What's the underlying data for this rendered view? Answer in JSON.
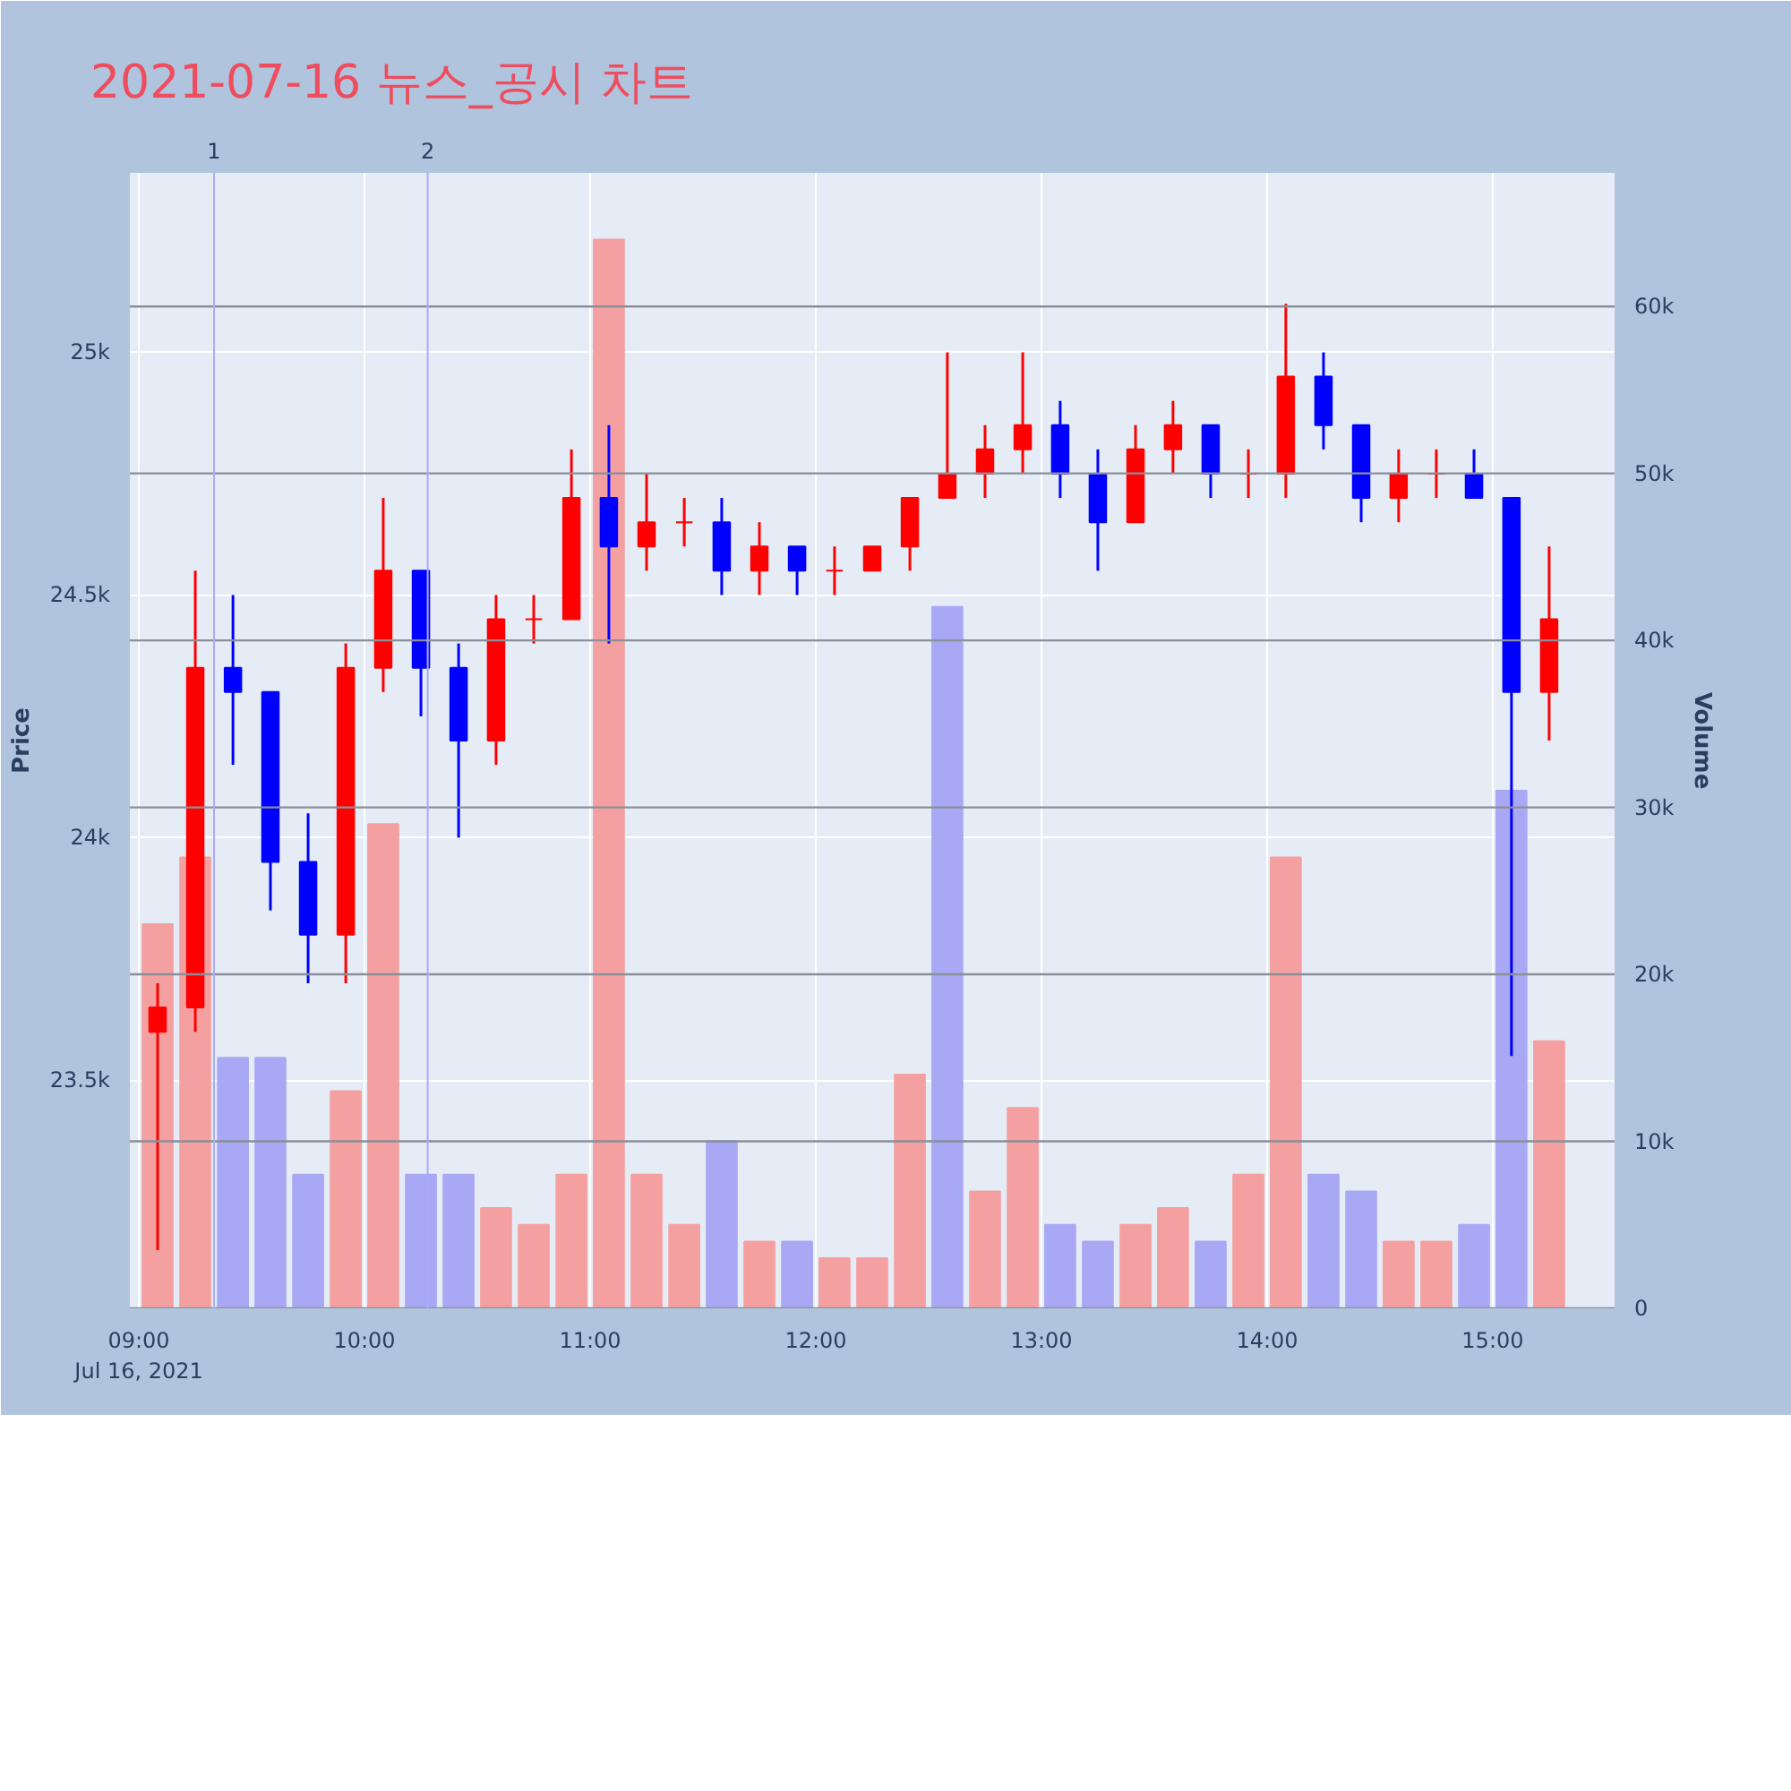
{
  "chart_data": {
    "type": "candlestick",
    "title": "2021-07-16 뉴스_공시 차트",
    "ylabel": "Price",
    "y2label": "Volume",
    "x": [
      9.083,
      9.25,
      9.417,
      9.583,
      9.75,
      9.917,
      10.083,
      10.25,
      10.417,
      10.583,
      10.75,
      10.917,
      11.083,
      11.25,
      11.417,
      11.583,
      11.75,
      11.917,
      12.083,
      12.25,
      12.417,
      12.583,
      12.75,
      12.917,
      13.083,
      13.25,
      13.417,
      13.583,
      13.75,
      13.917,
      14.083,
      14.25,
      14.417,
      14.583,
      14.75,
      14.917,
      15.083,
      15.25
    ],
    "series": [
      {
        "ohlc": [
          [
            23600,
            23700,
            23150,
            23650
          ],
          [
            23650,
            24550,
            23600,
            24350
          ],
          [
            24350,
            24500,
            24150,
            24300
          ],
          [
            24300,
            24300,
            23850,
            23950
          ],
          [
            23950,
            24050,
            23700,
            23800
          ],
          [
            23800,
            24400,
            23700,
            24350
          ],
          [
            24350,
            24700,
            24300,
            24550
          ],
          [
            24550,
            24550,
            24250,
            24350
          ],
          [
            24350,
            24400,
            24000,
            24200
          ],
          [
            24200,
            24500,
            24150,
            24450
          ],
          [
            24450,
            24500,
            24400,
            24450
          ],
          [
            24450,
            24800,
            24450,
            24700
          ],
          [
            24700,
            24850,
            24400,
            24600
          ],
          [
            24600,
            24750,
            24550,
            24650
          ],
          [
            24650,
            24700,
            24600,
            24650
          ],
          [
            24650,
            24700,
            24500,
            24550
          ],
          [
            24550,
            24650,
            24500,
            24600
          ],
          [
            24600,
            24600,
            24500,
            24550
          ],
          [
            24550,
            24600,
            24500,
            24550
          ],
          [
            24550,
            24600,
            24550,
            24600
          ],
          [
            24600,
            24700,
            24550,
            24700
          ],
          [
            24700,
            25000,
            24700,
            24750
          ],
          [
            24750,
            24850,
            24700,
            24800
          ],
          [
            24800,
            25000,
            24750,
            24850
          ],
          [
            24850,
            24900,
            24700,
            24750
          ],
          [
            24750,
            24800,
            24550,
            24650
          ],
          [
            24650,
            24850,
            24650,
            24800
          ],
          [
            24800,
            24900,
            24750,
            24850
          ],
          [
            24850,
            24850,
            24700,
            24750
          ],
          [
            24750,
            24800,
            24700,
            24750
          ],
          [
            24750,
            25100,
            24700,
            24950
          ],
          [
            24950,
            25000,
            24800,
            24850
          ],
          [
            24850,
            24850,
            24650,
            24700
          ],
          [
            24700,
            24800,
            24650,
            24750
          ],
          [
            24750,
            24800,
            24700,
            24750
          ],
          [
            24750,
            24800,
            24700,
            24700
          ],
          [
            24700,
            24700,
            23550,
            24300
          ],
          [
            24300,
            24600,
            24200,
            24450
          ]
        ],
        "colors": [
          "#ff0000",
          "#ff0000",
          "#0000ff",
          "#0000ff",
          "#0000ff",
          "#ff0000",
          "#ff0000",
          "#0000ff",
          "#0000ff",
          "#ff0000",
          "#ff0000",
          "#ff0000",
          "#0000ff",
          "#ff0000",
          "#ff0000",
          "#0000ff",
          "#ff0000",
          "#0000ff",
          "#ff0000",
          "#ff0000",
          "#ff0000",
          "#ff0000",
          "#ff0000",
          "#ff0000",
          "#0000ff",
          "#0000ff",
          "#ff0000",
          "#ff0000",
          "#0000ff",
          "#ff0000",
          "#ff0000",
          "#0000ff",
          "#0000ff",
          "#ff0000",
          "#ff0000",
          "#0000ff",
          "#0000ff",
          "#ff0000"
        ]
      },
      {
        "type": "bar",
        "axis": "y2",
        "values": [
          23000,
          27000,
          15000,
          15000,
          8000,
          13000,
          29000,
          8000,
          8000,
          6000,
          5000,
          8000,
          64000,
          8000,
          5000,
          10000,
          4000,
          4000,
          3000,
          3000,
          14000,
          42000,
          7000,
          12000,
          5000,
          4000,
          5000,
          6000,
          4000,
          8000,
          27000,
          8000,
          7000,
          4000,
          4000,
          5000,
          31000,
          16000
        ],
        "colors": [
          "#f4a0a0",
          "#f4a0a0",
          "#a8a8f4",
          "#a8a8f4",
          "#a8a8f4",
          "#f4a0a0",
          "#f4a0a0",
          "#a8a8f4",
          "#a8a8f4",
          "#f4a0a0",
          "#f4a0a0",
          "#f4a0a0",
          "#f4a0a0",
          "#f4a0a0",
          "#f4a0a0",
          "#a8a8f4",
          "#f4a0a0",
          "#a8a8f4",
          "#f4a0a0",
          "#f4a0a0",
          "#f4a0a0",
          "#a8a8f4",
          "#f4a0a0",
          "#f4a0a0",
          "#a8a8f4",
          "#a8a8f4",
          "#f4a0a0",
          "#f4a0a0",
          "#a8a8f4",
          "#f4a0a0",
          "#f4a0a0",
          "#a8a8f4",
          "#a8a8f4",
          "#f4a0a0",
          "#f4a0a0",
          "#a8a8f4",
          "#a8a8f4",
          "#f4a0a0"
        ]
      }
    ],
    "xlim": [
      8.96,
      15.54
    ],
    "xticks": [
      {
        "value": 9,
        "label": "09:00\nJul 16, 2021"
      },
      {
        "value": 10,
        "label": "10:00"
      },
      {
        "value": 11,
        "label": "11:00"
      },
      {
        "value": 12,
        "label": "12:00"
      },
      {
        "value": 13,
        "label": "13:00"
      },
      {
        "value": 14,
        "label": "14:00"
      },
      {
        "value": 15,
        "label": "15:00"
      }
    ],
    "ylim": [
      23030,
      25370
    ],
    "yticks": [
      {
        "value": 23500,
        "label": "23.5k"
      },
      {
        "value": 24000,
        "label": "24k"
      },
      {
        "value": 24500,
        "label": "24.5k"
      },
      {
        "value": 25000,
        "label": "25k"
      }
    ],
    "y2lim": [
      0,
      68000
    ],
    "y2ticks": [
      0,
      {
        "value": 10000,
        "label": "10k"
      },
      {
        "value": 20000,
        "label": "20k"
      },
      {
        "value": 30000,
        "label": "30k"
      },
      {
        "value": 40000,
        "label": "40k"
      },
      {
        "value": 50000,
        "label": "50k"
      },
      {
        "value": 60000,
        "label": "60k"
      }
    ],
    "ref_lines": [
      {
        "axis": "x",
        "value": 9.333,
        "color": "#aaaaff"
      },
      {
        "axis": "x",
        "value": 10.28,
        "color": "#aaaaff"
      }
    ],
    "annotations": [
      "1",
      "2"
    ],
    "grid": true
  }
}
